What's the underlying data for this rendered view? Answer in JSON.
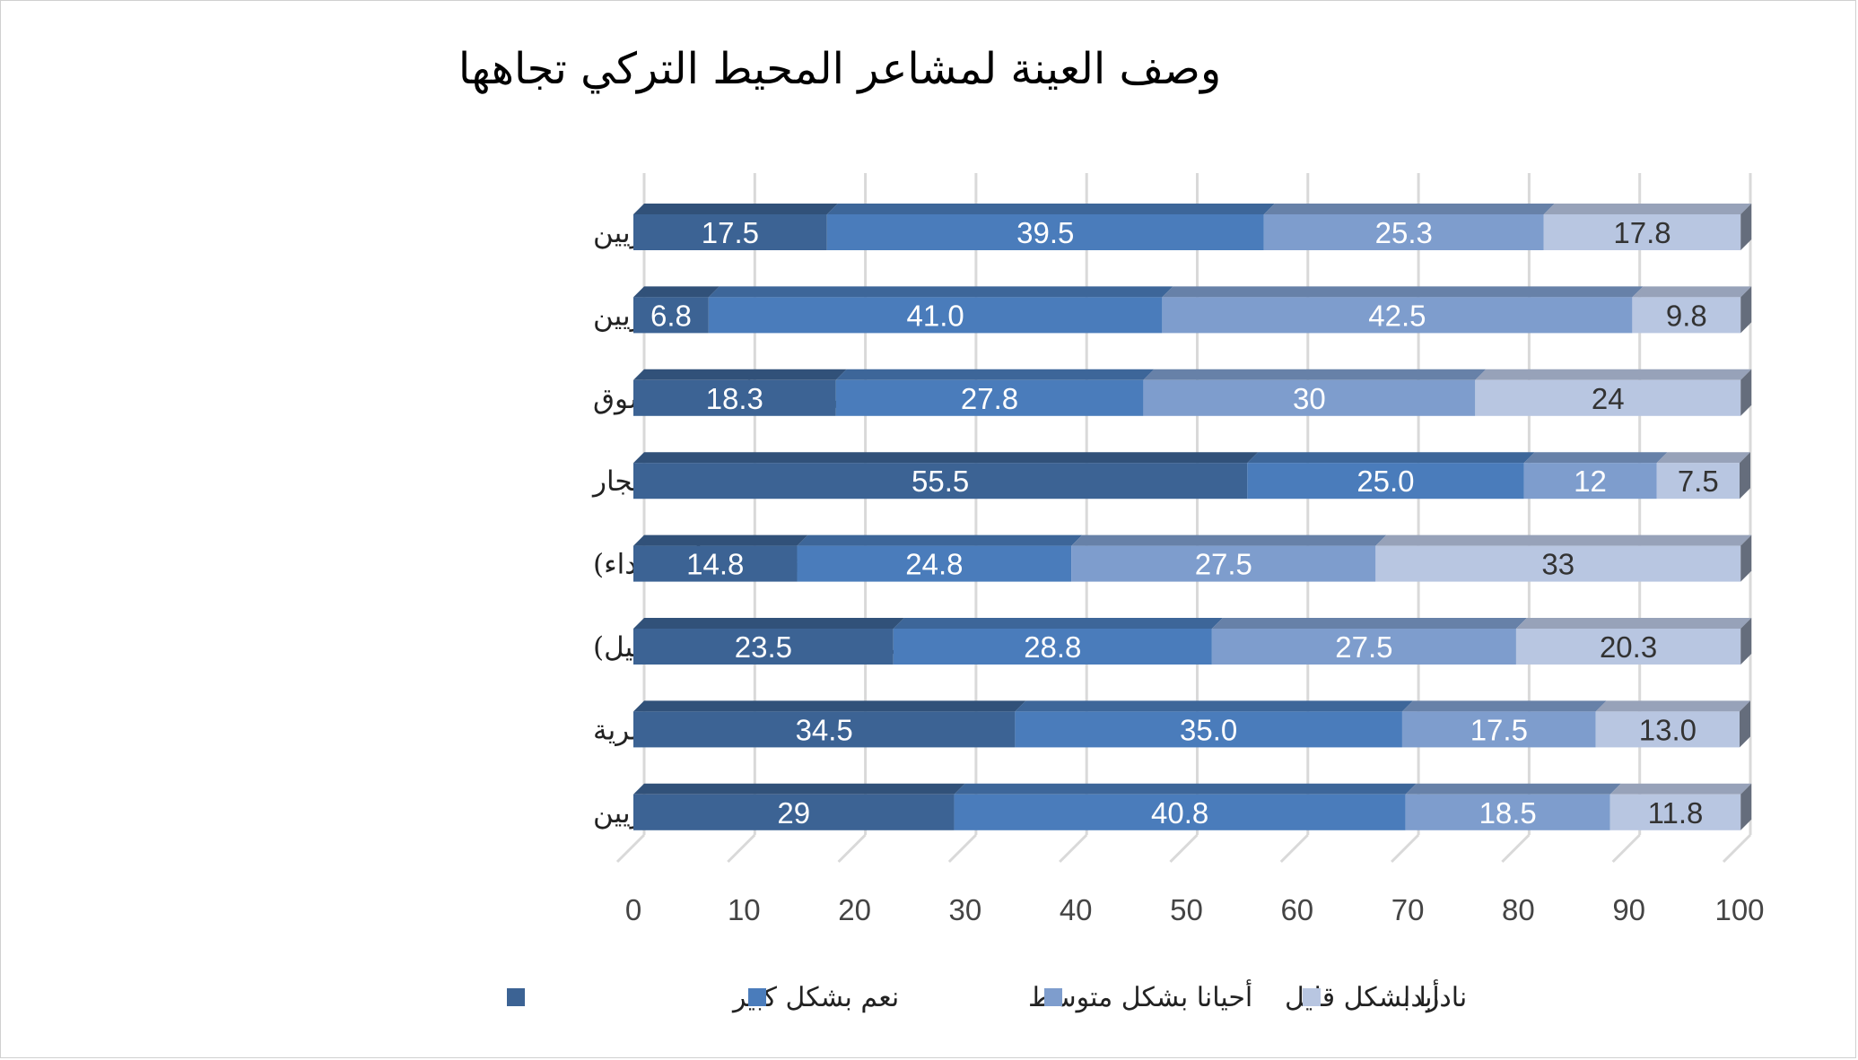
{
  "chart_data": {
    "type": "bar",
    "orientation": "horizontal",
    "stacked": true,
    "title": "وصف العينة لمشاعر المحيط التركي تجاهها",
    "categories": [
      "لا تغيير في تعامل المحيط التركي مع السوريين",
      "تآزر وتعاطف مع السوريين",
      "سوء معاملة في أماكن التسوق",
      "سوء معاملة في قضايا الإيجار",
      "تنمر مادي (محاولة اعتداء أو اعتداء)",
      "تنمر لفظي (شتائم، دعوات للرحيل)",
      "تزايد خطاب العنصرية",
      "نفور من السوريين"
    ],
    "series": [
      {
        "name": "نعم بشكل كبير",
        "color": "#3c6394",
        "values": [
          17.5,
          6.8,
          18.3,
          55.5,
          14.8,
          23.5,
          34.5,
          29
        ],
        "labels": [
          "17.5",
          "6.8",
          "18.3",
          "55.5",
          "14.8",
          "23.5",
          "34.5",
          "29"
        ]
      },
      {
        "name": "أحيانا بشكل متوسط",
        "color": "#4a7cbb",
        "values": [
          39.5,
          41.0,
          27.8,
          25.0,
          24.8,
          28.8,
          35.0,
          40.8
        ],
        "labels": [
          "39.5",
          "41.0",
          "27.8",
          "25.0",
          "24.8",
          "28.8",
          "35.0",
          "40.8"
        ]
      },
      {
        "name": "نادرا بشكل قليل",
        "color": "#7e9dcd",
        "values": [
          25.3,
          42.5,
          30,
          12,
          27.5,
          27.5,
          17.5,
          18.5
        ],
        "labels": [
          "25.3",
          "42.5",
          "30",
          "12",
          "27.5",
          "27.5",
          "17.5",
          "18.5"
        ]
      },
      {
        "name": "أبدا",
        "color": "#b8c6e1",
        "values": [
          17.8,
          9.8,
          24,
          7.5,
          33,
          20.3,
          13.0,
          11.8
        ],
        "labels": [
          "17.8",
          "9.8",
          "24",
          "7.5",
          "33",
          "20.3",
          "13.0",
          "11.8"
        ]
      }
    ],
    "xlim": [
      0,
      100
    ],
    "xticks": [
      "0",
      "10",
      "20",
      "30",
      "40",
      "50",
      "60",
      "70",
      "80",
      "90",
      "100"
    ],
    "grid": true,
    "legend_position": "bottom",
    "style": "3d"
  }
}
